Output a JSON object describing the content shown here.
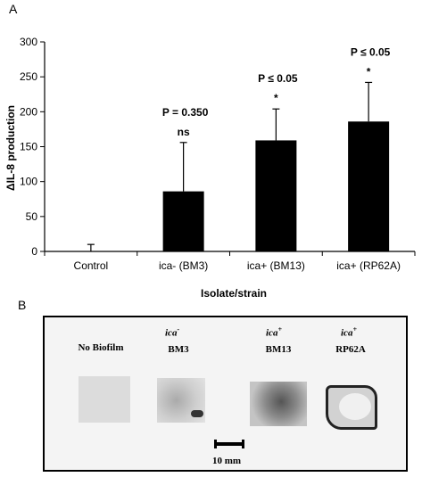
{
  "panels": {
    "a": "A",
    "b": "B"
  },
  "chart_data": {
    "type": "bar",
    "ylabel": "ΔIL-8 production",
    "xlabel": "Isolate/strain",
    "ylim": [
      0,
      300
    ],
    "yticks": [
      0,
      50,
      100,
      150,
      200,
      250,
      300
    ],
    "categories": [
      "Control",
      "ica- (BM3)",
      "ica+ (BM13)",
      "ica+ (RP62A)"
    ],
    "values": [
      0,
      86,
      159,
      186
    ],
    "error_upper": [
      10,
      156,
      204,
      242
    ],
    "annotations": [
      {
        "category": "ica- (BM3)",
        "p_label": "P = 0.350",
        "sig": "ns"
      },
      {
        "category": "ica+ (BM13)",
        "p_label": "P ≤ 0.05",
        "sig": "*"
      },
      {
        "category": "ica+ (RP62A)",
        "p_label": "P ≤ 0.05",
        "sig": "*"
      }
    ],
    "bar_color": "#000000",
    "grid": false,
    "legend": "none"
  },
  "figure_b": {
    "samples": [
      {
        "genotype": "",
        "name": "No Biofilm"
      },
      {
        "genotype": "ica",
        "sup": "-",
        "name": "BM3"
      },
      {
        "genotype": "ica",
        "sup": "+",
        "name": "BM13"
      },
      {
        "genotype": "ica",
        "sup": "+",
        "name": "RP62A"
      }
    ],
    "scale_label": "10 mm"
  }
}
